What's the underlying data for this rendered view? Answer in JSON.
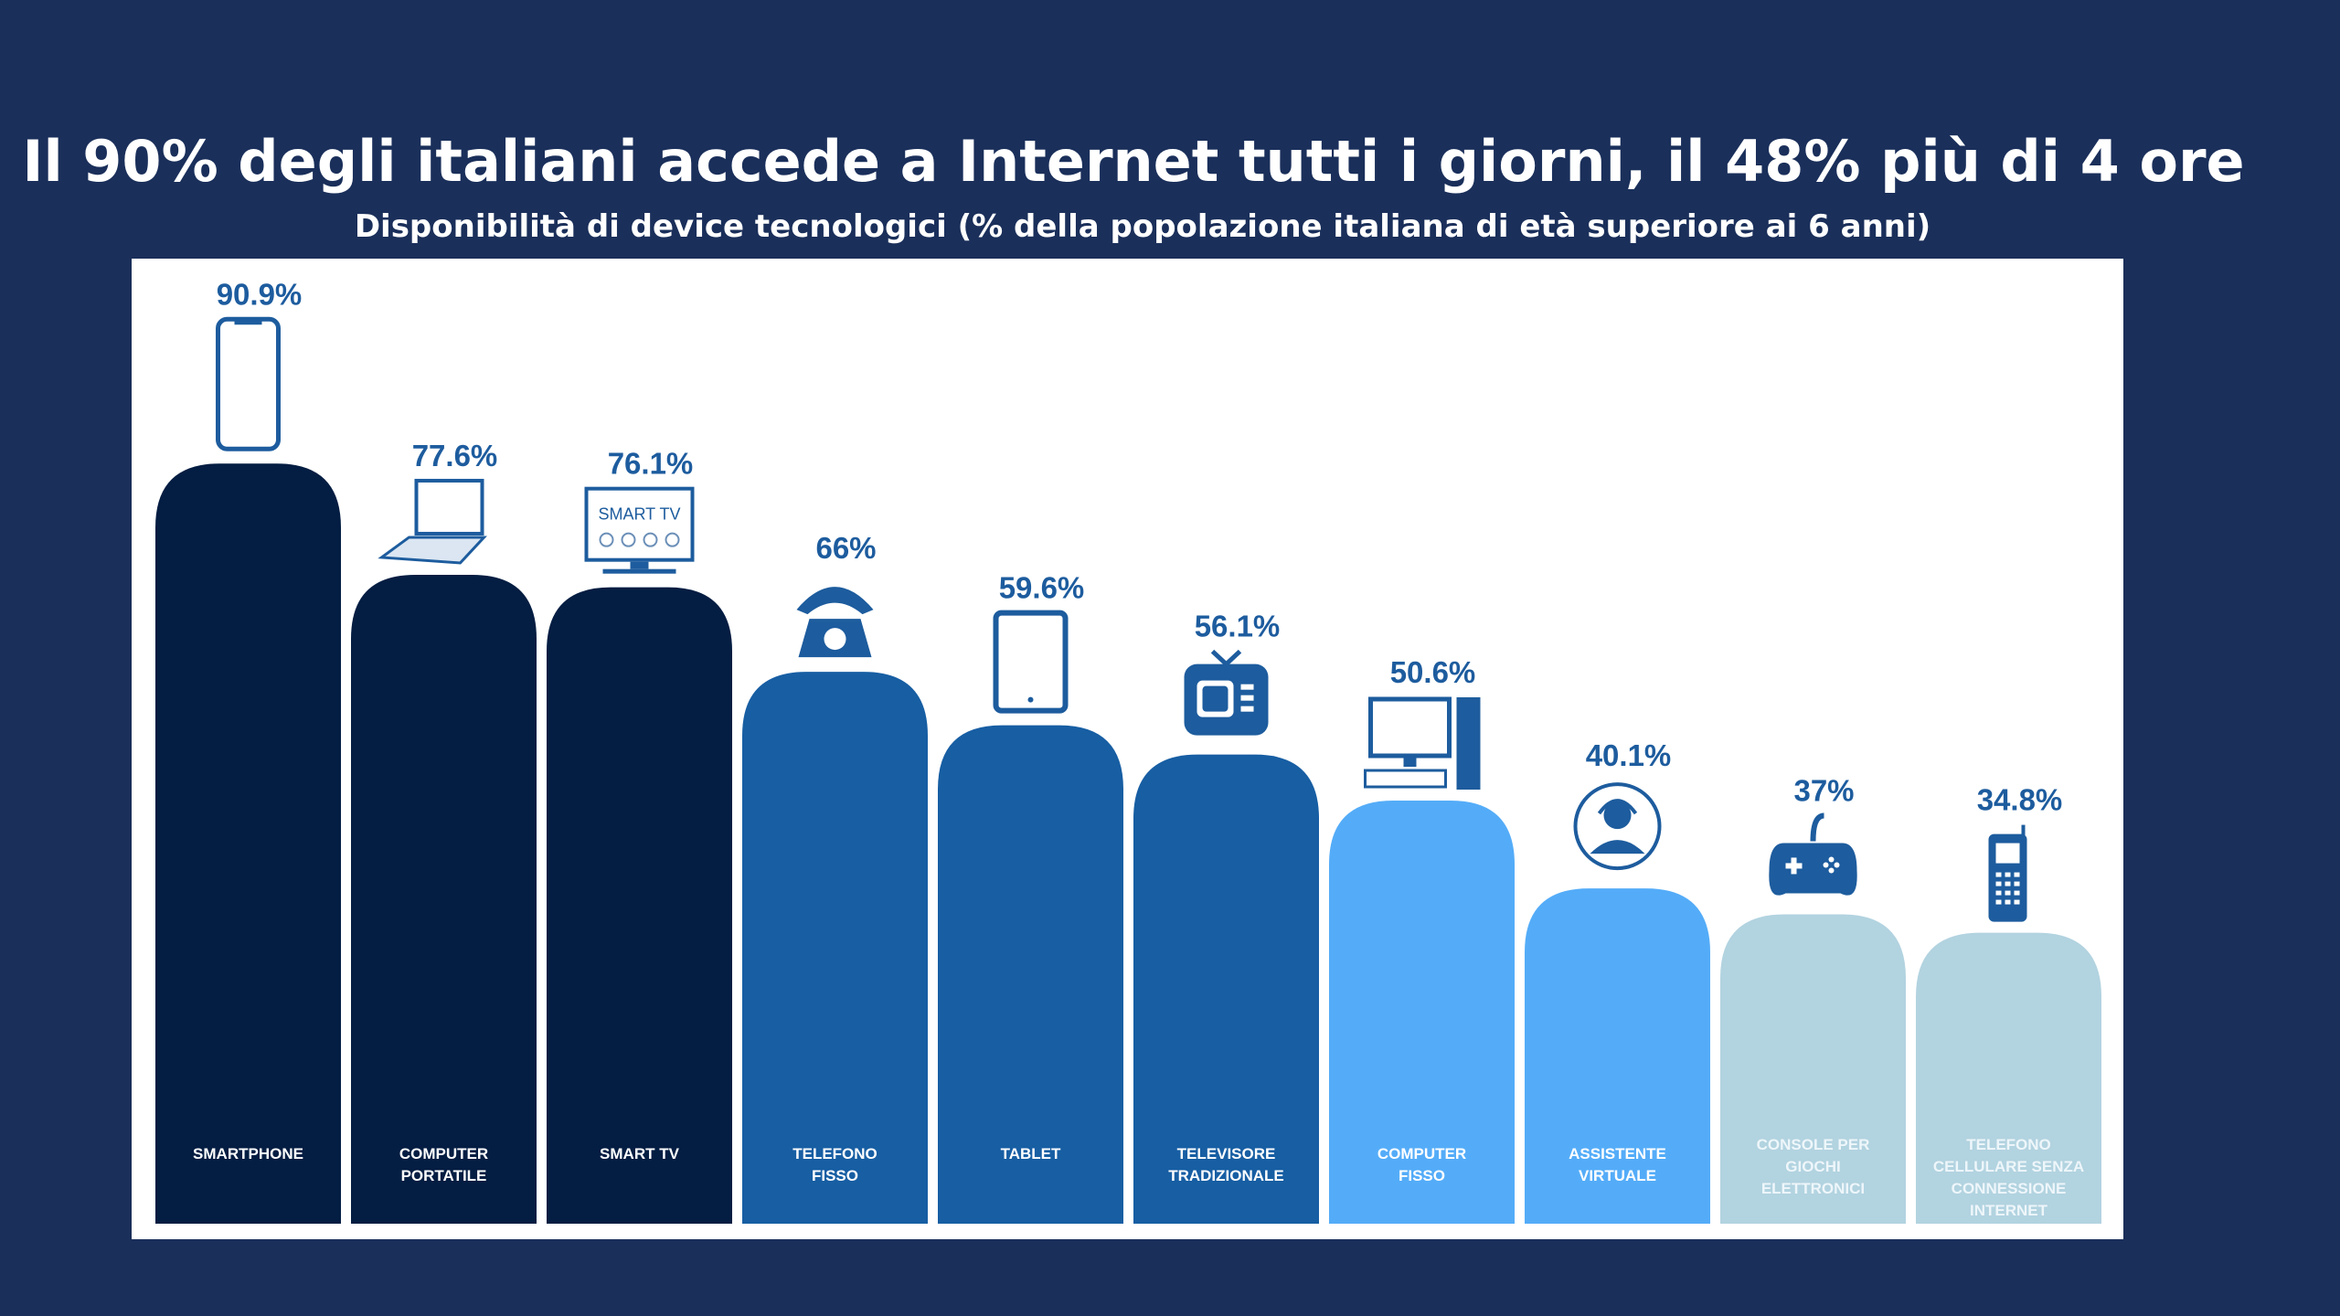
{
  "title": "Il 90% degli italiani accede a Internet tutti i giorni, il 48% più di 4 ore",
  "subtitle": "Disponibilità di device tecnologici (% della popolazione italiana di età superiore ai 6 anni)",
  "colors": {
    "background": "#1a2f5a",
    "dark": "#041d42",
    "mid": "#175ea3",
    "light": "#54acf8",
    "pale": "#b2d3e0",
    "label": "#1d5c9e"
  },
  "chart_data": {
    "type": "bar",
    "title": "Disponibilità di device tecnologici (% della popolazione italiana di età superiore ai 6 anni)",
    "xlabel": "",
    "ylabel": "%",
    "ylim": [
      0,
      100
    ],
    "grid": false,
    "categories": [
      [
        "SMARTPHONE"
      ],
      [
        "COMPUTER",
        "PORTATILE"
      ],
      [
        "SMART TV"
      ],
      [
        "TELEFONO",
        "FISSO"
      ],
      [
        "TABLET"
      ],
      [
        "TELEVISORE",
        "TRADIZIONALE"
      ],
      [
        "COMPUTER",
        "FISSO"
      ],
      [
        "ASSISTENTE",
        "VIRTUALE"
      ],
      [
        "CONSOLE PER",
        "GIOCHI",
        "ELETTRONICI"
      ],
      [
        "TELEFONO",
        "CELLULARE SENZA",
        "CONNESSIONE",
        "INTERNET"
      ]
    ],
    "values": [
      90.9,
      77.6,
      76.1,
      66,
      59.6,
      56.1,
      50.6,
      40.1,
      37,
      34.8
    ],
    "value_labels": [
      "90.9%",
      "77.6%",
      "76.1%",
      "66%",
      "59.6%",
      "56.1%",
      "50.6%",
      "40.1%",
      "37%",
      "34.8%"
    ],
    "color_groups": [
      "dark",
      "dark",
      "dark",
      "mid",
      "mid",
      "mid",
      "light",
      "light",
      "pale",
      "pale"
    ],
    "icons": [
      "smartphone-icon",
      "laptop-icon",
      "smart-tv-icon",
      "telephone-icon",
      "tablet-icon",
      "tv-icon",
      "desktop-computer-icon",
      "virtual-assistant-icon",
      "gamepad-icon",
      "mobile-phone-icon"
    ],
    "smart_tv_icon_text": "SMART TV"
  }
}
